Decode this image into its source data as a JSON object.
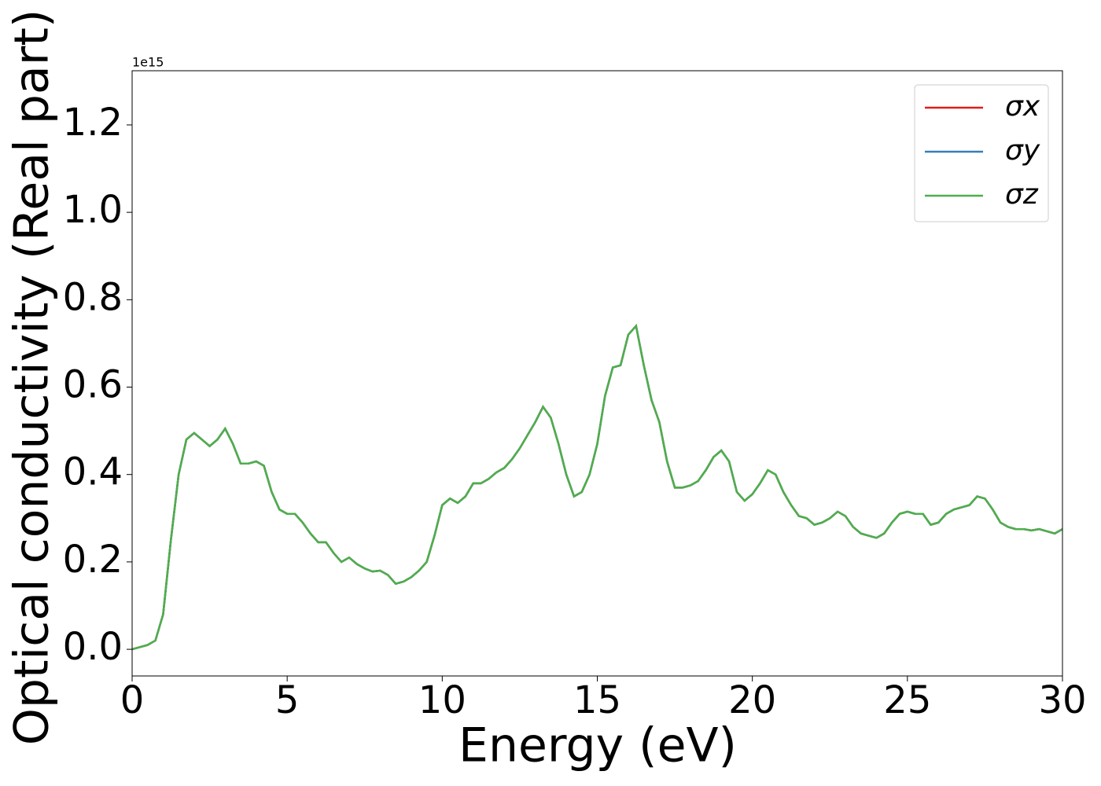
{
  "chart_data": {
    "type": "line",
    "xlabel": "Energy (eV)",
    "ylabel": "Optical conductivity (Real part)",
    "offset_label": "1e15",
    "x": [
      0,
      0.25,
      0.5,
      0.75,
      1,
      1.25,
      1.5,
      1.75,
      2,
      2.25,
      2.5,
      2.75,
      3,
      3.25,
      3.5,
      3.75,
      4,
      4.25,
      4.5,
      4.75,
      5,
      5.25,
      5.5,
      5.75,
      6,
      6.25,
      6.5,
      6.75,
      7,
      7.25,
      7.5,
      7.75,
      8,
      8.25,
      8.5,
      8.75,
      9,
      9.25,
      9.5,
      9.75,
      10,
      10.25,
      10.5,
      10.75,
      11,
      11.25,
      11.5,
      11.75,
      12,
      12.25,
      12.5,
      12.75,
      13,
      13.25,
      13.5,
      13.75,
      14,
      14.25,
      14.5,
      14.75,
      15,
      15.25,
      15.5,
      15.75,
      16,
      16.25,
      16.5,
      16.75,
      17,
      17.25,
      17.5,
      17.75,
      18,
      18.25,
      18.5,
      18.75,
      19,
      19.25,
      19.5,
      19.75,
      20,
      20.25,
      20.5,
      20.75,
      21,
      21.25,
      21.5,
      21.75,
      22,
      22.25,
      22.5,
      22.75,
      23,
      23.25,
      23.5,
      23.75,
      24,
      24.25,
      24.5,
      24.75,
      25,
      25.25,
      25.5,
      25.75,
      26,
      26.25,
      26.5,
      26.75,
      27,
      27.25,
      27.5,
      27.75,
      28,
      28.25,
      28.5,
      28.75,
      29,
      29.25,
      29.5,
      29.75,
      30
    ],
    "series": [
      {
        "name": "σx",
        "color": "#e41a1c",
        "values": [
          0,
          0.005,
          0.01,
          0.02,
          0.08,
          0.25,
          0.4,
          0.48,
          0.495,
          0.48,
          0.465,
          0.48,
          0.505,
          0.47,
          0.425,
          0.425,
          0.43,
          0.42,
          0.36,
          0.32,
          0.31,
          0.31,
          0.29,
          0.265,
          0.245,
          0.245,
          0.22,
          0.2,
          0.21,
          0.195,
          0.185,
          0.178,
          0.18,
          0.17,
          0.15,
          0.155,
          0.165,
          0.18,
          0.2,
          0.26,
          0.33,
          0.345,
          0.335,
          0.35,
          0.38,
          0.38,
          0.39,
          0.405,
          0.415,
          0.435,
          0.46,
          0.49,
          0.52,
          0.555,
          0.53,
          0.47,
          0.4,
          0.35,
          0.36,
          0.4,
          0.47,
          0.58,
          0.645,
          0.65,
          0.72,
          0.74,
          0.65,
          0.57,
          0.52,
          0.43,
          0.37,
          0.37,
          0.375,
          0.385,
          0.41,
          0.44,
          0.455,
          0.43,
          0.36,
          0.34,
          0.355,
          0.38,
          0.41,
          0.4,
          0.36,
          0.33,
          0.305,
          0.3,
          0.285,
          0.29,
          0.3,
          0.315,
          0.305,
          0.28,
          0.265,
          0.26,
          0.255,
          0.265,
          0.29,
          0.31,
          0.315,
          0.31,
          0.31,
          0.285,
          0.29,
          0.31,
          0.32,
          0.325,
          0.33,
          0.35,
          0.345,
          0.32,
          0.29,
          0.28,
          0.275,
          0.275,
          0.272,
          0.275,
          0.27,
          0.265,
          0.275
        ]
      },
      {
        "name": "σy",
        "color": "#377eb8",
        "values": [
          0,
          0.005,
          0.01,
          0.02,
          0.08,
          0.25,
          0.4,
          0.48,
          0.495,
          0.48,
          0.465,
          0.48,
          0.505,
          0.47,
          0.425,
          0.425,
          0.43,
          0.42,
          0.36,
          0.32,
          0.31,
          0.31,
          0.29,
          0.265,
          0.245,
          0.245,
          0.22,
          0.2,
          0.21,
          0.195,
          0.185,
          0.178,
          0.18,
          0.17,
          0.15,
          0.155,
          0.165,
          0.18,
          0.2,
          0.26,
          0.33,
          0.345,
          0.335,
          0.35,
          0.38,
          0.38,
          0.39,
          0.405,
          0.415,
          0.435,
          0.46,
          0.49,
          0.52,
          0.555,
          0.53,
          0.47,
          0.4,
          0.35,
          0.36,
          0.4,
          0.47,
          0.58,
          0.645,
          0.65,
          0.72,
          0.74,
          0.65,
          0.57,
          0.52,
          0.43,
          0.37,
          0.37,
          0.375,
          0.385,
          0.41,
          0.44,
          0.455,
          0.43,
          0.36,
          0.34,
          0.355,
          0.38,
          0.41,
          0.4,
          0.36,
          0.33,
          0.305,
          0.3,
          0.285,
          0.29,
          0.3,
          0.315,
          0.305,
          0.28,
          0.265,
          0.26,
          0.255,
          0.265,
          0.29,
          0.31,
          0.315,
          0.31,
          0.31,
          0.285,
          0.29,
          0.31,
          0.32,
          0.325,
          0.33,
          0.35,
          0.345,
          0.32,
          0.29,
          0.28,
          0.275,
          0.275,
          0.272,
          0.275,
          0.27,
          0.265,
          0.275
        ]
      },
      {
        "name": "σz",
        "color": "#4daf4a",
        "values": [
          0,
          0.005,
          0.01,
          0.02,
          0.08,
          0.25,
          0.4,
          0.48,
          0.495,
          0.48,
          0.465,
          0.48,
          0.505,
          0.47,
          0.425,
          0.425,
          0.43,
          0.42,
          0.36,
          0.32,
          0.31,
          0.31,
          0.29,
          0.265,
          0.245,
          0.245,
          0.22,
          0.2,
          0.21,
          0.195,
          0.185,
          0.178,
          0.18,
          0.17,
          0.15,
          0.155,
          0.165,
          0.18,
          0.2,
          0.26,
          0.33,
          0.345,
          0.335,
          0.35,
          0.38,
          0.38,
          0.39,
          0.405,
          0.415,
          0.435,
          0.46,
          0.49,
          0.52,
          0.555,
          0.53,
          0.47,
          0.4,
          0.35,
          0.36,
          0.4,
          0.47,
          0.58,
          0.645,
          0.65,
          0.72,
          0.74,
          0.65,
          0.57,
          0.52,
          0.43,
          0.37,
          0.37,
          0.375,
          0.385,
          0.41,
          0.44,
          0.455,
          0.43,
          0.36,
          0.34,
          0.355,
          0.38,
          0.41,
          0.4,
          0.36,
          0.33,
          0.305,
          0.3,
          0.285,
          0.29,
          0.3,
          0.315,
          0.305,
          0.28,
          0.265,
          0.26,
          0.255,
          0.265,
          0.29,
          0.31,
          0.315,
          0.31,
          0.31,
          0.285,
          0.29,
          0.31,
          0.32,
          0.325,
          0.33,
          0.35,
          0.345,
          0.32,
          0.29,
          0.28,
          0.275,
          0.275,
          0.272,
          0.275,
          0.27,
          0.265,
          0.275
        ]
      }
    ],
    "xlim": [
      0,
      30
    ],
    "xticks": [
      0,
      5,
      10,
      15,
      20,
      25,
      30
    ],
    "ylim": [
      -0.061,
      1.324
    ],
    "yticks": [
      {
        "value": 0,
        "label": "0.0"
      },
      0.2,
      0.4,
      0.6,
      0.8,
      {
        "value": 1,
        "label": "1.0"
      },
      1.2
    ],
    "grid": false,
    "legend": "upper right"
  }
}
